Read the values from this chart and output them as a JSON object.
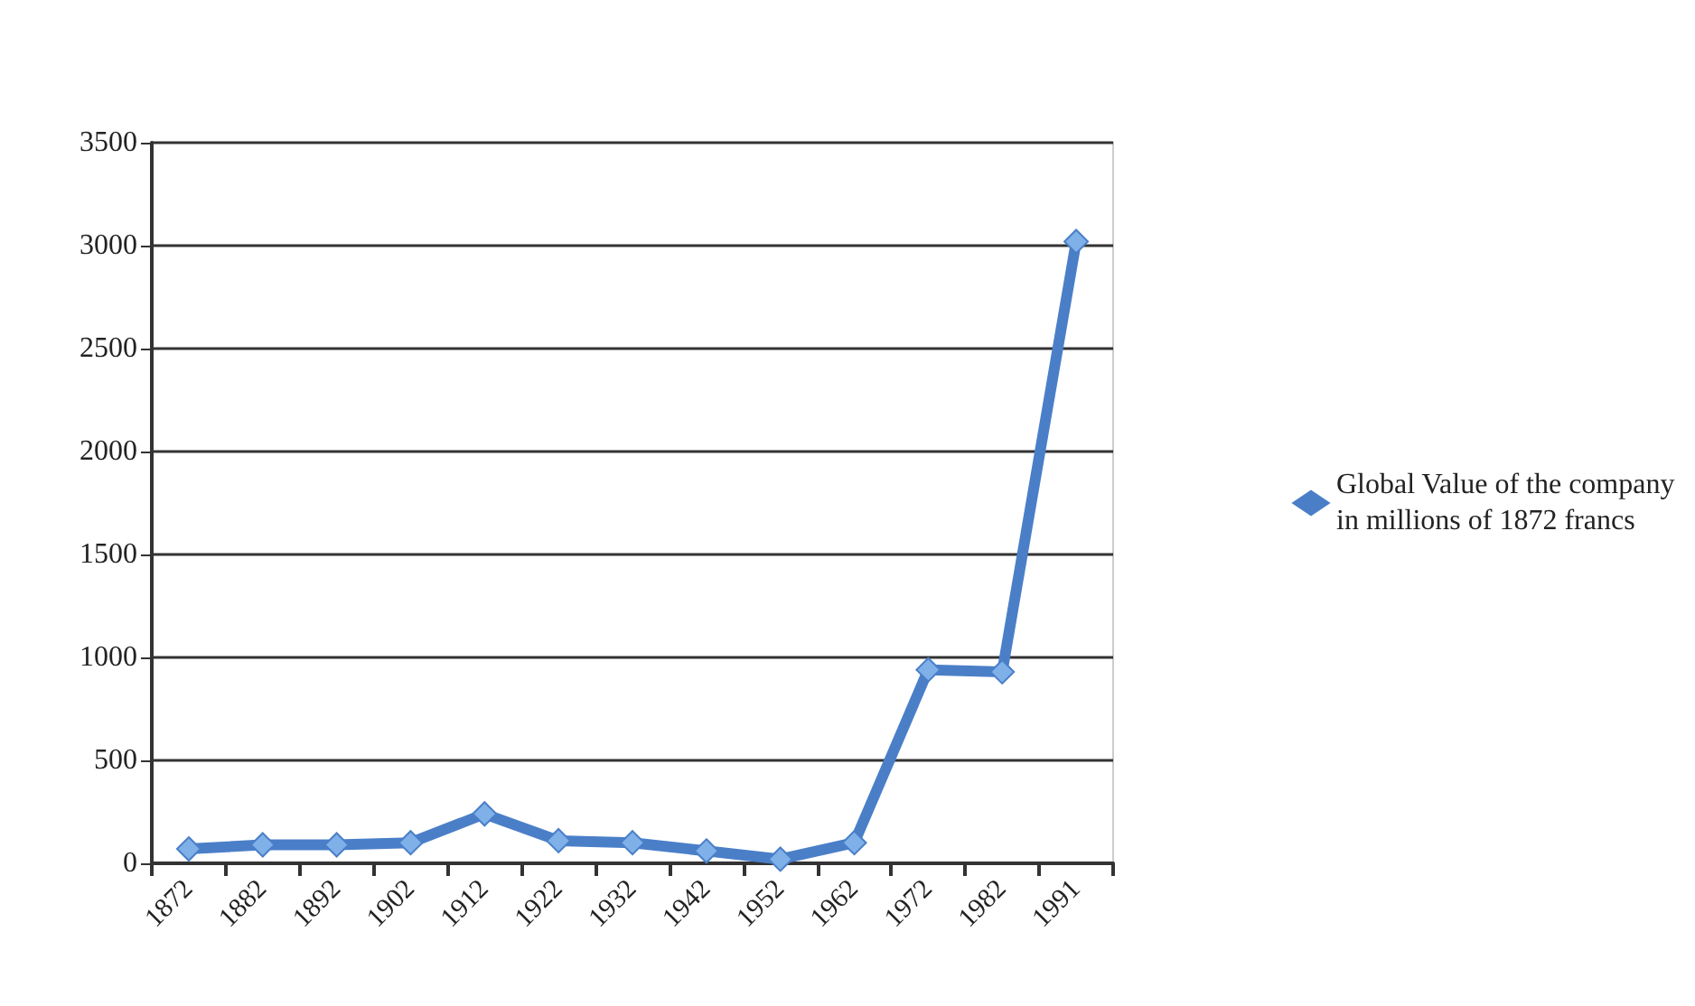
{
  "chart_data": {
    "type": "line",
    "categories": [
      "1872",
      "1882",
      "1892",
      "1902",
      "1912",
      "1922",
      "1932",
      "1942",
      "1952",
      "1962",
      "1972",
      "1982",
      "1991"
    ],
    "series": [
      {
        "name": "Global Value of the company\nin millions of 1872 francs",
        "color": "#4a7fc8",
        "values": [
          70,
          90,
          90,
          100,
          240,
          110,
          100,
          60,
          20,
          100,
          940,
          930,
          3020
        ]
      }
    ],
    "ylim": [
      0,
      3500
    ],
    "yticks": [
      0,
      500,
      1000,
      1500,
      2000,
      2500,
      3000,
      3500
    ],
    "grid": "y",
    "legend": "right",
    "marker": "diamond",
    "line_style": "solid"
  }
}
